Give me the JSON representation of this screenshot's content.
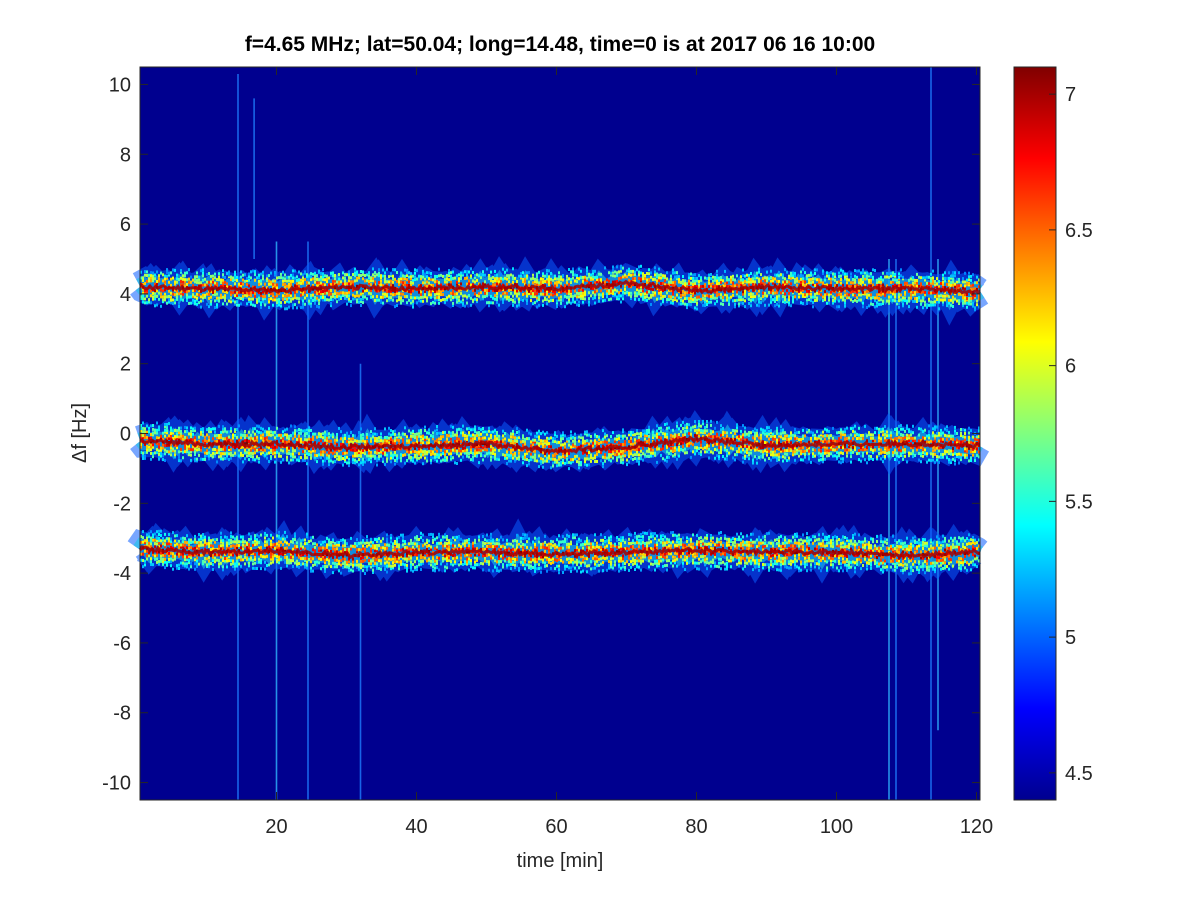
{
  "chart_data": {
    "type": "heatmap",
    "title": "f=4.65 MHz;  lat=50.04; long=14.48, time=0 is at 2017 06 16 10:00",
    "xlabel": "time [min]",
    "ylabel": "Δf [Hz]",
    "xlim": [
      0.5,
      120.5
    ],
    "ylim": [
      -10.5,
      10.5
    ],
    "x_ticks": [
      20,
      40,
      60,
      80,
      100,
      120
    ],
    "y_ticks": [
      10,
      8,
      6,
      4,
      2,
      0,
      -2,
      -4,
      -6,
      -8,
      -10
    ],
    "colormap": "jet",
    "color_limits": [
      4.4,
      7.1
    ],
    "colorbar_ticks": [
      7,
      6.5,
      6,
      5.5,
      5,
      4.5
    ],
    "grid": false,
    "traces": [
      {
        "time": [
          0,
          10,
          20,
          30,
          40,
          50,
          60,
          70,
          80,
          90,
          100,
          110,
          120
        ],
        "delta_f": [
          4.2,
          4.15,
          4.1,
          4.2,
          4.15,
          4.2,
          4.15,
          4.3,
          4.1,
          4.2,
          4.15,
          4.15,
          4.05
        ]
      },
      {
        "time": [
          0,
          10,
          20,
          30,
          40,
          50,
          60,
          70,
          80,
          90,
          100,
          110,
          120
        ],
        "delta_f": [
          -0.2,
          -0.3,
          -0.3,
          -0.4,
          -0.35,
          -0.3,
          -0.5,
          -0.4,
          -0.15,
          -0.35,
          -0.3,
          -0.3,
          -0.35
        ]
      },
      {
        "time": [
          0,
          10,
          20,
          30,
          40,
          50,
          60,
          70,
          80,
          90,
          100,
          110,
          120
        ],
        "delta_f": [
          -3.3,
          -3.4,
          -3.35,
          -3.5,
          -3.4,
          -3.4,
          -3.45,
          -3.4,
          -3.35,
          -3.4,
          -3.4,
          -3.5,
          -3.4
        ]
      }
    ],
    "vertical_streaks": [
      {
        "time": 14.5,
        "from": -10.5,
        "to": 10.3
      },
      {
        "time": 16.8,
        "from": 5,
        "to": 9.6
      },
      {
        "time": 20.0,
        "from": -10.5,
        "to": 5.5
      },
      {
        "time": 24.5,
        "from": -10.5,
        "to": 5.5
      },
      {
        "time": 32.0,
        "from": -10.5,
        "to": 2.0
      },
      {
        "time": 107.5,
        "from": -10.5,
        "to": 5.0
      },
      {
        "time": 108.5,
        "from": -10.5,
        "to": 5.0
      },
      {
        "time": 113.5,
        "from": -10.5,
        "to": 10.5
      },
      {
        "time": 114.5,
        "from": -8.5,
        "to": 5.0
      }
    ]
  }
}
